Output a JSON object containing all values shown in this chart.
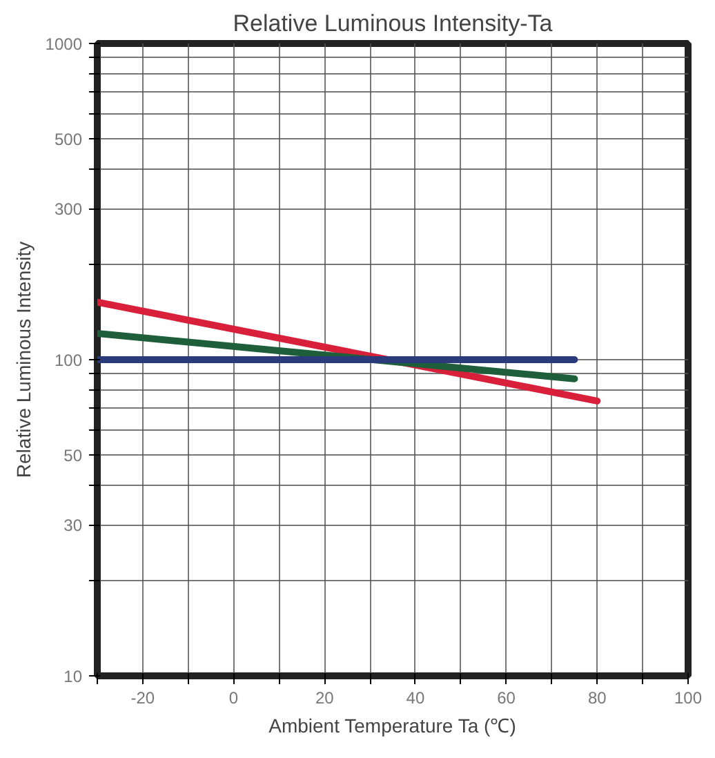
{
  "chart_data": {
    "type": "line",
    "title": "Relative Luminous Intensity-Ta",
    "xlabel": "Ambient Temperature Ta (℃)",
    "ylabel": "Relative Luminous Intensity",
    "log": "y",
    "grid": true,
    "line_style": "solid",
    "xlim": [
      -30,
      100
    ],
    "ylim": [
      10,
      1000
    ],
    "xticks": [
      {
        "value": -30,
        "label": null
      },
      -20,
      {
        "value": -10,
        "label": null
      },
      0,
      {
        "value": 10,
        "label": null
      },
      20,
      {
        "value": 30,
        "label": null
      },
      40,
      {
        "value": 50,
        "label": null
      },
      60,
      {
        "value": 70,
        "label": null
      },
      80,
      {
        "value": 90,
        "label": null
      },
      100
    ],
    "yticks": [
      10,
      {
        "value": 20,
        "label": null
      },
      30,
      {
        "value": 40,
        "label": null
      },
      50,
      {
        "value": 60,
        "label": null
      },
      {
        "value": 70,
        "label": null
      },
      {
        "value": 80,
        "label": null
      },
      {
        "value": 90,
        "label": null
      },
      100,
      {
        "value": 200,
        "label": null
      },
      300,
      {
        "value": 400,
        "label": null
      },
      500,
      {
        "value": 600,
        "label": null
      },
      {
        "value": 700,
        "label": null
      },
      {
        "value": 800,
        "label": null
      },
      {
        "value": 900,
        "label": null
      },
      1000
    ],
    "series": [
      {
        "color": "#d8203a",
        "x": [
          -30,
          80
        ],
        "values": [
          152,
          74
        ]
      },
      {
        "color": "#1e5e3a",
        "x": [
          -30,
          75
        ],
        "values": [
          121,
          87
        ]
      },
      {
        "color": "#2a3a7a",
        "x": [
          -30,
          75
        ],
        "values": [
          100,
          100
        ]
      }
    ]
  }
}
